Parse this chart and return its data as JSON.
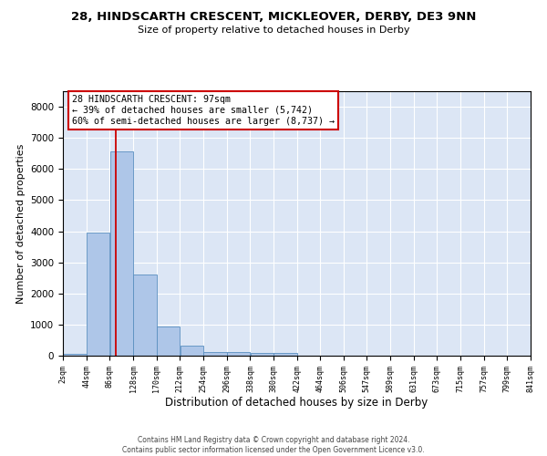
{
  "title": "28, HINDSCARTH CRESCENT, MICKLEOVER, DERBY, DE3 9NN",
  "subtitle": "Size of property relative to detached houses in Derby",
  "xlabel": "Distribution of detached houses by size in Derby",
  "ylabel": "Number of detached properties",
  "footer_line1": "Contains HM Land Registry data © Crown copyright and database right 2024.",
  "footer_line2": "Contains public sector information licensed under the Open Government Licence v3.0.",
  "annotation_title": "28 HINDSCARTH CRESCENT: 97sqm",
  "annotation_line1": "← 39% of detached houses are smaller (5,742)",
  "annotation_line2": "60% of semi-detached houses are larger (8,737) →",
  "property_size_sqm": 97,
  "bin_edges": [
    2,
    44,
    86,
    128,
    170,
    212,
    254,
    296,
    338,
    380,
    422,
    464,
    506,
    547,
    589,
    631,
    673,
    715,
    757,
    799,
    841
  ],
  "bin_counts": [
    70,
    3960,
    6580,
    2620,
    950,
    310,
    120,
    115,
    95,
    75,
    0,
    0,
    0,
    0,
    0,
    0,
    0,
    0,
    0,
    0
  ],
  "bar_color": "#aec6e8",
  "bar_edge_color": "#5a8fc0",
  "vline_color": "#cc0000",
  "vline_x": 97,
  "annotation_box_color": "#cc0000",
  "background_color": "#dce6f5",
  "ylim": [
    0,
    8500
  ],
  "yticks": [
    0,
    1000,
    2000,
    3000,
    4000,
    5000,
    6000,
    7000,
    8000
  ],
  "tick_labels": [
    "2sqm",
    "44sqm",
    "86sqm",
    "128sqm",
    "170sqm",
    "212sqm",
    "254sqm",
    "296sqm",
    "338sqm",
    "380sqm",
    "422sqm",
    "464sqm",
    "506sqm",
    "547sqm",
    "589sqm",
    "631sqm",
    "673sqm",
    "715sqm",
    "757sqm",
    "799sqm",
    "841sqm"
  ]
}
